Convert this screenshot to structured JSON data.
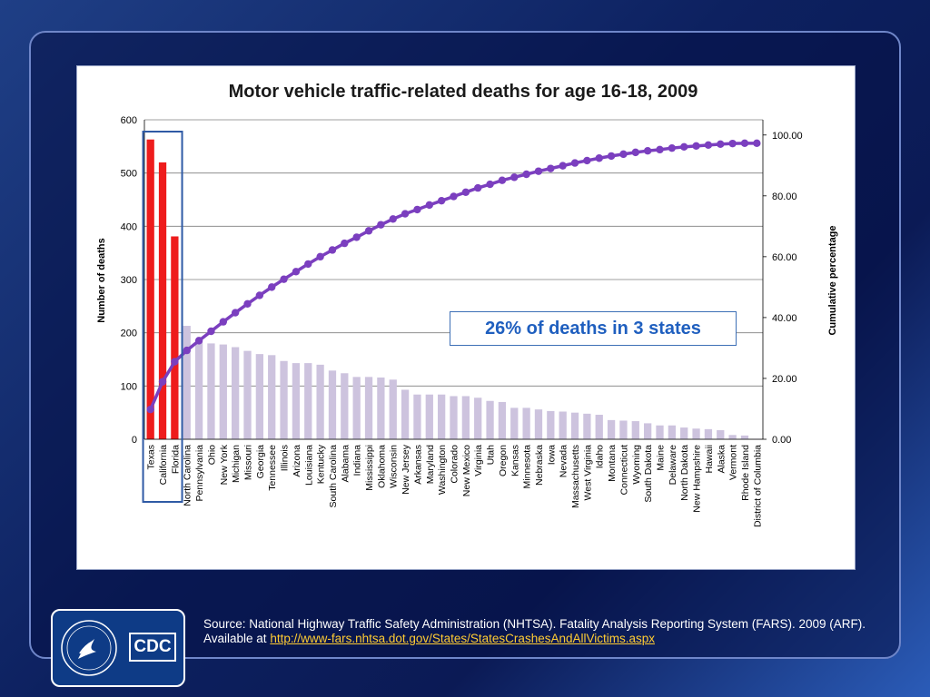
{
  "chart_data": {
    "type": "bar",
    "title": "Motor vehicle traffic-related deaths for age 16-18, 2009",
    "ylabel": "Number of deaths",
    "y2label": "Cumulative percentage",
    "ylim": [
      0,
      600
    ],
    "y2lim": [
      0,
      105
    ],
    "yticks": [
      "0",
      "100",
      "200",
      "300",
      "400",
      "500",
      "600"
    ],
    "y2ticks": [
      "0.00",
      "20.00",
      "40.00",
      "60.00",
      "80.00",
      "100.00"
    ],
    "grid": true,
    "categories": [
      "Texas",
      "California",
      "Florida",
      "North Carolina",
      "Pennsylvania",
      "Ohio",
      "New York",
      "Michigan",
      "Missouri",
      "Georgia",
      "Tennessee",
      "Illinois",
      "Arizona",
      "Louisiana",
      "Kentucky",
      "South Carolina",
      "Alabama",
      "Indiana",
      "Mississippi",
      "Oklahoma",
      "Wisconsin",
      "New Jersey",
      "Arkansas",
      "Maryland",
      "Washington",
      "Colorado",
      "New Mexico",
      "Virginia",
      "Utah",
      "Oregon",
      "Kansas",
      "Minnesota",
      "Nebraska",
      "Iowa",
      "Nevada",
      "Massachusetts",
      "West Virginia",
      "Idaho",
      "Montana",
      "Connecticut",
      "Wyoming",
      "South Dakota",
      "Maine",
      "Delaware",
      "North Dakota",
      "New Hampshire",
      "Hawaii",
      "Alaska",
      "Vermont",
      "Rhode Island",
      "District of Columbia"
    ],
    "values": [
      563,
      520,
      381,
      213,
      182,
      180,
      178,
      173,
      166,
      160,
      158,
      147,
      143,
      143,
      140,
      129,
      124,
      117,
      117,
      116,
      112,
      93,
      84,
      84,
      84,
      81,
      81,
      78,
      72,
      70,
      59,
      59,
      56,
      53,
      52,
      50,
      48,
      46,
      36,
      35,
      34,
      30,
      26,
      26,
      22,
      20,
      19,
      17,
      8,
      7,
      1
    ],
    "cumulative_percentage": [
      9.8,
      18.9,
      25.5,
      29.2,
      32.4,
      35.5,
      38.6,
      41.6,
      44.5,
      47.3,
      50.0,
      52.6,
      55.1,
      57.6,
      60.0,
      62.2,
      64.4,
      66.4,
      68.5,
      70.5,
      72.4,
      74.1,
      75.5,
      77.0,
      78.4,
      79.8,
      81.2,
      82.6,
      83.8,
      85.1,
      86.1,
      87.1,
      88.1,
      89.0,
      89.9,
      90.8,
      91.6,
      92.4,
      93.1,
      93.7,
      94.3,
      94.8,
      95.2,
      95.7,
      96.1,
      96.4,
      96.7,
      97.0,
      97.2,
      97.3,
      97.3
    ],
    "highlight_count": 3,
    "colors": {
      "highlight_bar": "#ee1c1c",
      "other_bar": "#cdc3de",
      "line": "#7b3fbf",
      "highlight_box": "#2f5aa5",
      "grid": "#7f7f7f"
    },
    "annotation": "26% of deaths in 3 states"
  },
  "footer": {
    "source_text": "Source: National Highway Traffic Safety Administration (NHTSA). Fatality Analysis Reporting System (FARS). 2009 (ARF). Available at ",
    "source_link": "http://www-fars.nhtsa.dot.gov/States/StatesCrashesAndAllVictims.aspx",
    "logo_text": "CDC"
  }
}
